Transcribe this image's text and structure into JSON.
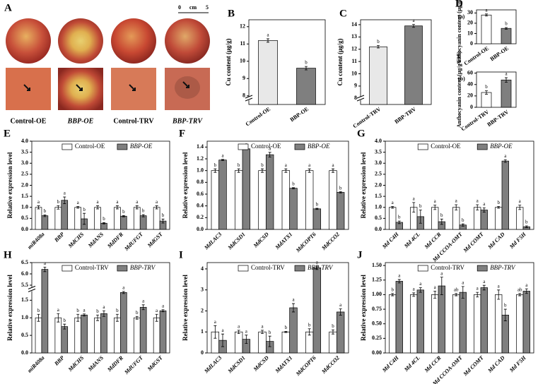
{
  "photos": {
    "label": "A",
    "scale": {
      "start": "0",
      "unit": "cm",
      "end": "5"
    },
    "captions": [
      "Control-OE",
      "BBP-OE",
      "Control-TRV",
      "BBP-TRV"
    ]
  },
  "chart_data": [
    {
      "type": "bar",
      "label": "B",
      "ylabel": "Cu content (μg/g)",
      "categories": [
        "Control-OE",
        "BBP-OE"
      ],
      "values": [
        11.2,
        9.6
      ],
      "errors": [
        0.1,
        0.1
      ],
      "letters": [
        "a",
        "b"
      ],
      "colors": [
        "#e8e8e8",
        "#7f7f7f"
      ],
      "ylim": [
        7.5,
        12.4
      ],
      "yticks": [
        8,
        9,
        10,
        11,
        12
      ],
      "ybreak_bottom": true
    },
    {
      "type": "bar",
      "label": "C",
      "ylabel": "Cu content (μg/g)",
      "categories": [
        "Control-TRV",
        "BBP-TRV"
      ],
      "values": [
        12.2,
        13.9
      ],
      "errors": [
        0.1,
        0.12
      ],
      "letters": [
        "b",
        "a"
      ],
      "colors": [
        "#e8e8e8",
        "#7f7f7f"
      ],
      "ylim": [
        7.5,
        14.4
      ],
      "yticks": [
        8,
        9,
        10,
        11,
        12,
        13,
        14
      ],
      "ybreak_bottom": true
    },
    {
      "type": "bar",
      "label": "D",
      "sublabel": "(a)",
      "ylabel": "Anthocyanin content (μg/g FW)",
      "categories": [
        "Control-OE",
        "BBP-OE"
      ],
      "values": [
        28,
        15
      ],
      "errors": [
        1,
        0.8
      ],
      "letters": [
        "a",
        "b"
      ],
      "colors": [
        "#ffffff",
        "#7f7f7f"
      ],
      "ylim": [
        0,
        33
      ],
      "yticks": [
        0,
        10,
        20,
        30
      ]
    },
    {
      "type": "bar",
      "sublabel": "(b)",
      "ylabel": "Anthocyanin content (μg/g FW)",
      "categories": [
        "Control-TRV",
        "BBP-TRV"
      ],
      "values": [
        26,
        48
      ],
      "errors": [
        3,
        4
      ],
      "letters": [
        "b",
        "a"
      ],
      "colors": [
        "#ffffff",
        "#7f7f7f"
      ],
      "ylim": [
        0,
        62
      ],
      "yticks": [
        0,
        20,
        40,
        60
      ]
    },
    {
      "type": "bar",
      "label": "E",
      "ylabel": "Relative expression level",
      "categories": [
        "miR408a",
        "BBP",
        "MdCHS",
        "MdANS",
        "MdDFR",
        "MdUFGT",
        "MdGST"
      ],
      "legend": true,
      "series": [
        {
          "name": "Control-OE",
          "color": "#ffffff",
          "values": [
            1,
            1,
            1,
            1,
            1,
            1,
            1
          ],
          "errors": [
            0.07,
            0.08,
            0.04,
            0.07,
            0.07,
            0.07,
            0.07
          ],
          "letters": [
            "a",
            "b",
            "a",
            "a",
            "a",
            "a",
            "a"
          ]
        },
        {
          "name": "BBP-OE",
          "color": "#7f7f7f",
          "values": [
            0.62,
            1.32,
            0.48,
            0.28,
            0.6,
            0.62,
            0.38
          ],
          "errors": [
            0.04,
            0.15,
            0.25,
            0.03,
            0.03,
            0.05,
            0.09
          ],
          "letters": [
            "b",
            "a",
            "b",
            "b",
            "b",
            "b",
            "b"
          ]
        }
      ],
      "ylim": [
        0,
        4.0
      ],
      "yticks": [
        {
          "value": 0,
          "label": "0.0"
        },
        0.5,
        {
          "value": 1,
          "label": "1.0"
        },
        1.5,
        {
          "value": 2,
          "label": "2.0"
        },
        2.5,
        {
          "value": 3,
          "label": "3.0"
        },
        3.5,
        {
          "value": 4,
          "label": "4.0"
        }
      ]
    },
    {
      "type": "bar",
      "label": "F",
      "ylabel": "Relative expression level",
      "categories": [
        "MdLAC3",
        "MdCSD1",
        "MdCSD",
        "MdATX1",
        "MdCOPT6",
        "MdCCO2"
      ],
      "legend": true,
      "series": [
        {
          "name": "Control-OE",
          "color": "#ffffff",
          "values": [
            1,
            1,
            1,
            1,
            1,
            1
          ],
          "errors": [
            0.03,
            0.03,
            0.03,
            0.03,
            0.03,
            0.03
          ],
          "letters": [
            "b",
            "b",
            "b",
            "a",
            "a",
            "a"
          ]
        },
        {
          "name": "BBP-OE",
          "color": "#7f7f7f",
          "values": [
            1.18,
            1.37,
            1.27,
            0.7,
            0.35,
            0.63
          ],
          "errors": [
            0.01,
            0.01,
            0.04,
            0.01,
            0.01,
            0.01
          ],
          "letters": [
            "a",
            "a",
            "a",
            "b",
            "b",
            "b"
          ]
        }
      ],
      "ylim": [
        0,
        1.5
      ],
      "yticks": [
        {
          "value": 0,
          "label": "0.0"
        },
        0.2,
        0.4,
        0.6,
        0.8,
        {
          "value": 1,
          "label": "1.0"
        },
        1.2,
        1.4
      ]
    },
    {
      "type": "bar",
      "label": "G",
      "ylabel": "Relative expression level",
      "categories": [
        "Md C4H",
        "Md 4CL",
        "Md CCR",
        "Md CCOA-OMT",
        "Md COMT",
        "Md CAD",
        "Md F5H"
      ],
      "legend": true,
      "series": [
        {
          "name": "Control-OE",
          "color": "#ffffff",
          "values": [
            1,
            1,
            1,
            1,
            1,
            1,
            1
          ],
          "errors": [
            0.04,
            0.22,
            0.1,
            0.12,
            0.12,
            0.04,
            0.1
          ],
          "letters": [
            "a",
            "a",
            "a",
            "a",
            "a",
            "b",
            "a"
          ]
        },
        {
          "name": "BBP-OE",
          "color": "#7f7f7f",
          "values": [
            0.32,
            0.58,
            0.35,
            0.2,
            0.88,
            3.1,
            0.12
          ],
          "errors": [
            0.06,
            0.3,
            0.12,
            0.05,
            0.1,
            0.06,
            0.04
          ],
          "letters": [
            "b",
            "b",
            "b",
            "b",
            "a",
            "a",
            "b"
          ]
        }
      ],
      "ylim": [
        0,
        4.0
      ],
      "yticks": [
        {
          "value": 0,
          "label": "0.0"
        },
        0.5,
        {
          "value": 1,
          "label": "1.0"
        },
        1.5,
        {
          "value": 2,
          "label": "2.0"
        },
        2.5,
        {
          "value": 3,
          "label": "3.0"
        },
        3.5,
        {
          "value": 4,
          "label": "4.0"
        }
      ]
    },
    {
      "type": "bar",
      "label": "H",
      "ylabel": "Relative expression level",
      "categories": [
        "miR408a",
        "BBP",
        "MdCHS",
        "MdANS",
        "MdDFR",
        "MdUFGT",
        "MdGST"
      ],
      "legend": true,
      "series": [
        {
          "name": "Control-TRV",
          "color": "#ffffff",
          "values": [
            1,
            1,
            1,
            1,
            1,
            1,
            1
          ],
          "errors": [
            0.1,
            0.12,
            0.1,
            0.08,
            0.1,
            0.04,
            0.1
          ],
          "letters": [
            "b",
            "a",
            "b",
            "b",
            "b",
            "b",
            "a"
          ]
        },
        {
          "name": "BBP-TRV",
          "color": "#7f7f7f",
          "values": [
            6.2,
            0.75,
            1.08,
            1.12,
            1.72,
            1.3,
            1.2
          ],
          "errors": [
            0.1,
            0.07,
            0.03,
            0.08,
            0.03,
            0.07,
            0.03
          ],
          "letters": [
            "a",
            "b",
            "a",
            "a",
            "a",
            "a",
            "a"
          ]
        }
      ],
      "ylim": [
        0,
        6.5
      ],
      "ybreak": [
        1.8,
        5.3
      ],
      "yticks": [
        {
          "value": 0,
          "label": "0.0"
        },
        0.5,
        {
          "value": 1,
          "label": "1.0"
        },
        1.5,
        5.5,
        {
          "value": 6,
          "label": "6.0"
        },
        6.5
      ]
    },
    {
      "type": "bar",
      "label": "I",
      "ylabel": "Relative expression level",
      "categories": [
        "MdLAC3",
        "MdCSD1",
        "MdCSD",
        "MdATX1",
        "MdCOPT6",
        "MdCCO2"
      ],
      "legend": true,
      "series": [
        {
          "name": "Control-TRV",
          "color": "#ffffff",
          "values": [
            1,
            1,
            1,
            1,
            1,
            1
          ],
          "errors": [
            0.3,
            0.08,
            0.08,
            0.03,
            0.15,
            0.1
          ],
          "letters": [
            "a",
            "a",
            "a",
            "b",
            "b",
            "b"
          ]
        },
        {
          "name": "BBP-TRV",
          "color": "#7f7f7f",
          "values": [
            0.6,
            0.65,
            0.55,
            2.15,
            4.05,
            1.95
          ],
          "errors": [
            0.3,
            0.2,
            0.25,
            0.2,
            0.08,
            0.15
          ],
          "letters": [
            "a",
            "a",
            "b",
            "a",
            "a",
            "a"
          ]
        }
      ],
      "ylim": [
        0,
        4.3
      ],
      "yticks": [
        0,
        1,
        2,
        3,
        4
      ]
    },
    {
      "type": "bar",
      "label": "J",
      "ylabel": "Relative expression level",
      "categories": [
        "Md C4H",
        "Md 4CL",
        "Md CCR",
        "Md CCOA-OMT",
        "Md COMT",
        "Md CAD",
        "Md F5H"
      ],
      "legend": true,
      "series": [
        {
          "name": "Control-TRV",
          "color": "#ffffff",
          "values": [
            1,
            1,
            1,
            1,
            1,
            1,
            1
          ],
          "errors": [
            0.02,
            0.03,
            0.06,
            0.02,
            0.04,
            0.08,
            0.02
          ],
          "letters": [
            "b",
            "a",
            "a",
            "ab",
            "a",
            "a",
            "ab"
          ]
        },
        {
          "name": "BBP-TRV",
          "color": "#7f7f7f",
          "values": [
            1.23,
            1.08,
            1.15,
            1.04,
            1.12,
            0.65,
            1.06
          ],
          "errors": [
            0.03,
            0.04,
            0.15,
            0.1,
            0.04,
            0.1,
            0.04
          ],
          "letters": [
            "a",
            "a",
            "a",
            "a",
            "a",
            "b",
            "a"
          ]
        }
      ],
      "ylim": [
        0,
        1.55
      ],
      "yticks": [
        {
          "value": 0,
          "label": "0.00"
        },
        0.25,
        {
          "value": 0.5,
          "label": "0.50"
        },
        0.75,
        {
          "value": 1,
          "label": "1.00"
        },
        1.25,
        {
          "value": 1.5,
          "label": "1.50"
        }
      ]
    }
  ]
}
